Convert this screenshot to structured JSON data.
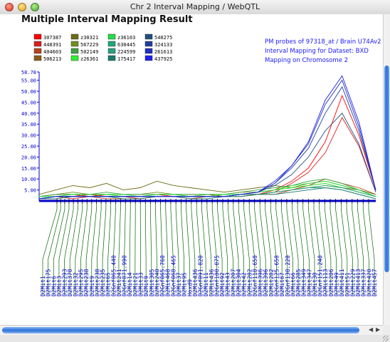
{
  "window": {
    "title": "Chr 2 Interval Mapping / WebQTL"
  },
  "heading": "Multiple Interval Mapping Result",
  "colors": {
    "axis": "#0000cc",
    "marker": "#006600",
    "label": "#0000cc"
  },
  "legend": [
    {
      "id": "307387",
      "color": "#ff0000"
    },
    {
      "id": "448391",
      "color": "#d81f1f"
    },
    {
      "id": "404603",
      "color": "#b8431a"
    },
    {
      "id": "506213",
      "color": "#8b5a1a"
    },
    {
      "id": "z30321",
      "color": "#6b6b14"
    },
    {
      "id": "567229",
      "color": "#6f8f1f"
    },
    {
      "id": "502149",
      "color": "#3fa03f"
    },
    {
      "id": "z26361",
      "color": "#33ee33"
    },
    {
      "id": "z36103",
      "color": "#22dd44"
    },
    {
      "id": "630445",
      "color": "#1fa87a"
    },
    {
      "id": "224599",
      "color": "#2ba080"
    },
    {
      "id": "175417",
      "color": "#1a7a6a"
    },
    {
      "id": "540275",
      "color": "#1f4f7f"
    },
    {
      "id": "324133",
      "color": "#1f3f9f"
    },
    {
      "id": "261613",
      "color": "#1f2fbf"
    },
    {
      "id": "437925",
      "color": "#1f1fef"
    }
  ],
  "info": [
    "PM probes of 97318_at / Brain U74Av2",
    "Interval Mapping for Dataset: BXD",
    "Mapping on Chromosome 2"
  ],
  "chart_data": {
    "type": "line",
    "ylim": [
      0,
      58.78
    ],
    "yticks": [
      5.0,
      10.0,
      15.0,
      20.0,
      25.0,
      30.0,
      35.0,
      40.0,
      45.0,
      50.0,
      55.0,
      58.78
    ],
    "ytick_labels": [
      "5.00",
      "10.00",
      "15.00",
      "20.00",
      "25.00",
      "30.00",
      "35.00",
      "40.00",
      "45.00",
      "50.00",
      "55.00",
      "58.78"
    ],
    "x": [
      0,
      5,
      10,
      15,
      20,
      25,
      30,
      35,
      40,
      45,
      50,
      55,
      60,
      65,
      70,
      75,
      80,
      85,
      90,
      95,
      100
    ],
    "series": [
      {
        "id": "307387",
        "values": [
          1,
          2,
          2,
          3,
          2,
          2,
          2,
          3,
          2,
          2,
          3,
          2,
          3,
          3,
          5,
          9,
          15,
          27,
          48,
          30,
          5
        ]
      },
      {
        "id": "448391",
        "values": [
          1,
          2,
          1,
          2,
          2,
          2,
          1,
          2,
          2,
          2,
          2,
          2,
          3,
          3,
          4,
          8,
          13,
          22,
          38,
          25,
          4
        ]
      },
      {
        "id": "404603",
        "values": [
          1,
          1,
          2,
          2,
          1,
          1,
          1,
          2,
          2,
          1,
          2,
          2,
          2,
          3,
          3,
          5,
          7,
          10,
          8,
          6,
          3
        ]
      },
      {
        "id": "506213",
        "values": [
          2,
          3,
          3,
          2,
          3,
          2,
          2,
          3,
          3,
          2,
          2,
          2,
          3,
          3,
          4,
          5,
          6,
          7,
          6,
          4,
          2
        ]
      },
      {
        "id": "z30321",
        "values": [
          3,
          5,
          7,
          6,
          8,
          5,
          6,
          9,
          7,
          6,
          5,
          4,
          5,
          6,
          7,
          6,
          7,
          8,
          6,
          5,
          3
        ]
      },
      {
        "id": "567229",
        "values": [
          2,
          3,
          4,
          3,
          3,
          3,
          3,
          4,
          3,
          3,
          3,
          3,
          4,
          4,
          5,
          6,
          8,
          9,
          7,
          5,
          2
        ]
      },
      {
        "id": "502149",
        "values": [
          2,
          3,
          3,
          3,
          4,
          3,
          3,
          3,
          3,
          3,
          3,
          3,
          4,
          5,
          6,
          7,
          9,
          10,
          8,
          5,
          2
        ]
      },
      {
        "id": "z26361",
        "values": [
          2,
          2,
          3,
          3,
          3,
          2,
          2,
          3,
          3,
          2,
          2,
          3,
          3,
          4,
          5,
          6,
          7,
          8,
          6,
          4,
          2
        ]
      },
      {
        "id": "z36103",
        "values": [
          2,
          2,
          3,
          3,
          3,
          3,
          2,
          3,
          3,
          2,
          3,
          3,
          3,
          4,
          5,
          7,
          8,
          9,
          7,
          5,
          2
        ]
      },
      {
        "id": "630445",
        "values": [
          1,
          2,
          2,
          2,
          2,
          2,
          2,
          2,
          2,
          2,
          2,
          2,
          3,
          3,
          4,
          5,
          6,
          7,
          6,
          4,
          2
        ]
      },
      {
        "id": "224599",
        "values": [
          1,
          2,
          2,
          2,
          2,
          2,
          2,
          2,
          2,
          2,
          2,
          2,
          2,
          3,
          4,
          5,
          6,
          6,
          5,
          3,
          1
        ]
      },
      {
        "id": "175417",
        "values": [
          1,
          1,
          2,
          2,
          2,
          1,
          1,
          2,
          2,
          1,
          1,
          2,
          2,
          3,
          3,
          4,
          5,
          6,
          5,
          3,
          1
        ]
      },
      {
        "id": "540275",
        "values": [
          1,
          2,
          2,
          2,
          2,
          2,
          2,
          2,
          2,
          2,
          2,
          2,
          3,
          4,
          7,
          12,
          20,
          32,
          40,
          26,
          4
        ]
      },
      {
        "id": "324133",
        "values": [
          1,
          2,
          2,
          2,
          2,
          2,
          2,
          2,
          2,
          2,
          2,
          2,
          3,
          4,
          8,
          15,
          24,
          40,
          52,
          32,
          5
        ]
      },
      {
        "id": "261613",
        "values": [
          1,
          2,
          2,
          2,
          2,
          2,
          2,
          2,
          2,
          2,
          2,
          2,
          3,
          4,
          8,
          16,
          26,
          44,
          55,
          34,
          5
        ]
      },
      {
        "id": "437925",
        "values": [
          1,
          2,
          2,
          2,
          2,
          2,
          2,
          2,
          2,
          2,
          2,
          2,
          3,
          4,
          9,
          16,
          27,
          46,
          57,
          36,
          5
        ]
      }
    ],
    "markers": [
      "D2Mit1",
      "D2Mit175",
      "D2Mit6",
      "D2Mit3",
      "D2Mit293",
      "D2Mit370",
      "D2Mit32",
      "D2Mit295",
      "D2Mit238",
      "D2Mit9",
      "D2Mit238",
      "D2Mit235",
      "D2Mit65",
      "D2Gnf065.440",
      "D2Mit241",
      "D2Gnf071.990",
      "D2Mit14",
      "D2Mit21",
      "D2Mit33",
      "D2Mit9",
      "D2Mit305",
      "D2Mit240",
      "D2Gnf065.760",
      "D2Mit468",
      "D2Gnf068.465",
      "D2Mit37",
      "D2Mit95",
      "Hoxd9",
      "D2Mit436",
      "D2Gnf091.820",
      "D2Mit11",
      "D2Mit436",
      "D2Gnf100.075",
      "D2Mit92",
      "D2Mit43",
      "D2Mit207",
      "D2Mit304",
      "D2Mit42",
      "D2Mit282",
      "D2Gnf118.650",
      "D2Mit396",
      "D2Mit396",
      "D2Mit282",
      "D2Gnf125.650",
      "D2Mit67",
      "D2Gnf130.220",
      "D2Mit66",
      "D2Mit285",
      "D2Mit349",
      "D2Mit347",
      "D2Mit30",
      "D2Gnf151.240",
      "D2Mit113",
      "D2Mit286",
      "D2Mit49",
      "D2Mit411",
      "D2Mit51",
      "D2Mit229",
      "D2Mit413",
      "D2Mit337",
      "D2Mit420",
      "D2Mit457"
    ]
  }
}
